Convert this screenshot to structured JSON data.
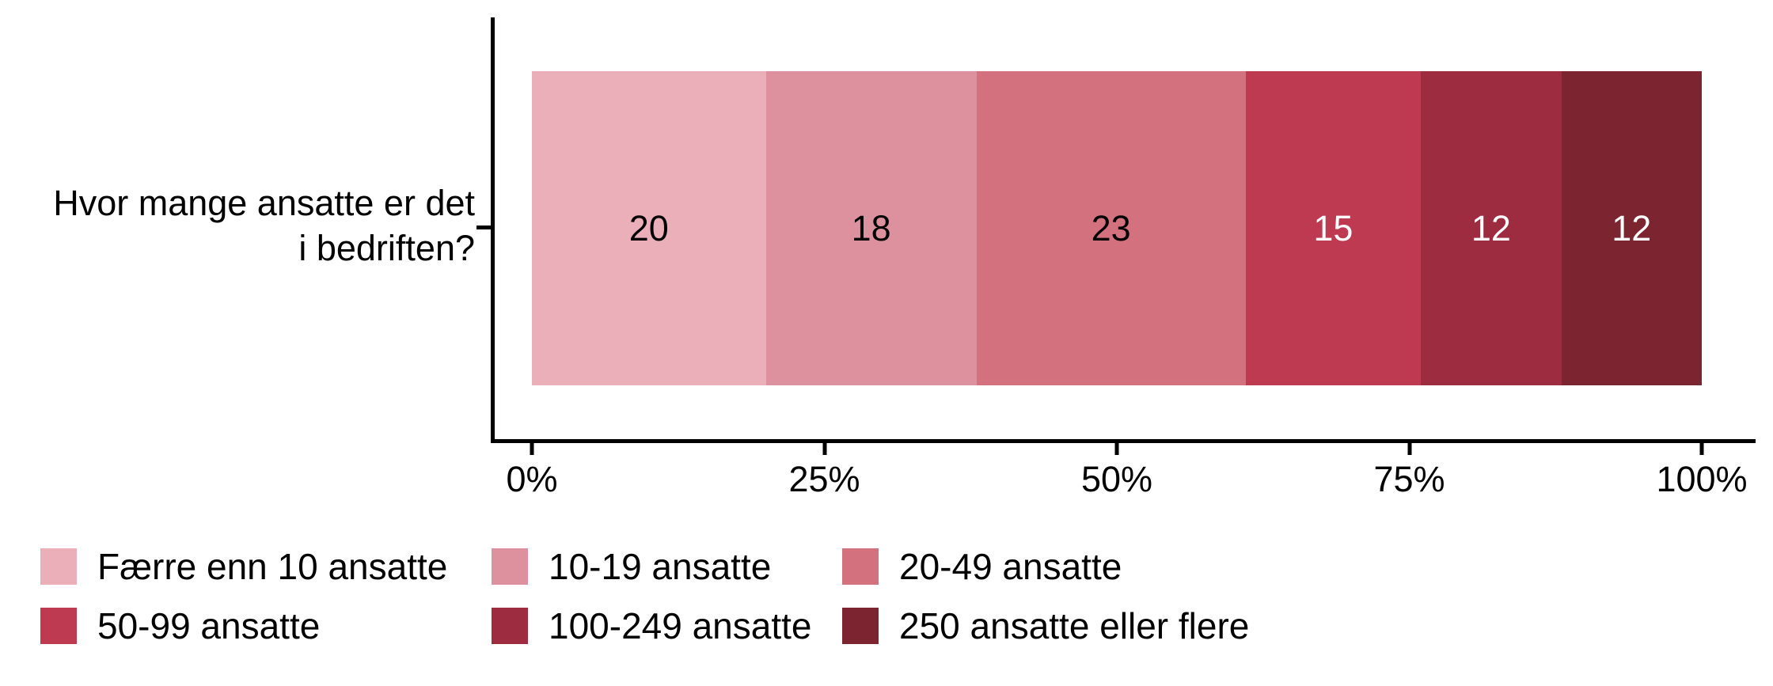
{
  "chart_data": {
    "type": "bar",
    "variant": "horizontal-stacked-100pct",
    "question": "Hvor mange ansatte er det i bedriften?",
    "question_lines": [
      "Hvor mange ansatte er det",
      "i bedriften?"
    ],
    "categories": [
      "Færre enn 10 ansatte",
      "10-19 ansatte",
      "20-49 ansatte",
      "50-99 ansatte",
      "100-249 ansatte",
      "250 ansatte eller flere"
    ],
    "values": [
      20,
      18,
      23,
      15,
      12,
      12
    ],
    "colors": [
      "#EAAFB9",
      "#DD909E",
      "#D4717F",
      "#BE3A51",
      "#9E2C40",
      "#7C2430"
    ],
    "value_label_colors": [
      "#000000",
      "#000000",
      "#000000",
      "#FFFFFF",
      "#FFFFFF",
      "#FFFFFF"
    ],
    "x_ticks": [
      {
        "value": 0,
        "label": "0%"
      },
      {
        "value": 25,
        "label": "25%"
      },
      {
        "value": 50,
        "label": "50%"
      },
      {
        "value": 75,
        "label": "75%"
      },
      {
        "value": 100,
        "label": "100%"
      }
    ],
    "xlim": [
      0,
      100
    ],
    "grid": "off",
    "legend_position": "bottom",
    "legend_columns": 3,
    "axis_color": "#000000"
  }
}
